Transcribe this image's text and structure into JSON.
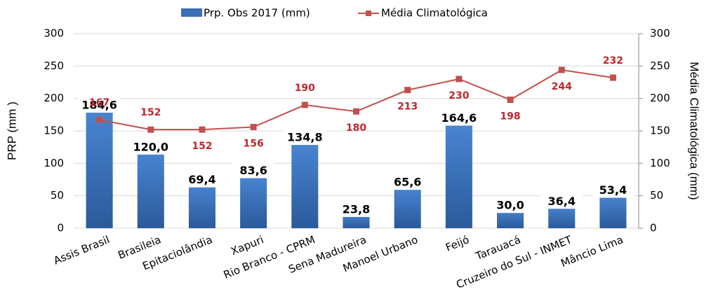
{
  "chart_data": {
    "type": "bar-line",
    "categories": [
      "Assis Brasil",
      "Brasileia",
      "Epitaciolândia",
      "Xapuri",
      "Rio Branco - CPRM",
      "Sena Madureira",
      "Manoel Urbano",
      "Feijó",
      "Tarauacá",
      "Cruzeiro do Sul - INMET",
      "Mâncio Lima"
    ],
    "series": [
      {
        "name": "Prp. Obs 2017 (mm)",
        "type": "bar",
        "color": "#3a6fb7",
        "values": [
          184.6,
          120.0,
          69.4,
          83.6,
          134.8,
          23.8,
          65.6,
          164.6,
          30.0,
          36.4,
          53.4
        ],
        "value_labels": [
          "184,6",
          "120,0",
          "69,4",
          "83,6",
          "134,8",
          "23,8",
          "65,6",
          "164,6",
          "30,0",
          "36,4",
          "53,4"
        ]
      },
      {
        "name": "Média Climatológica",
        "type": "line",
        "axis": "y2",
        "color": "#c0504d",
        "values": [
          167,
          152,
          152,
          156,
          190,
          180,
          213,
          230,
          198,
          244,
          232
        ]
      }
    ],
    "ylabel": "PRP (mm )",
    "y2label": "Média Climatológica (mm)",
    "ylim": [
      0,
      300
    ],
    "yticks": [
      0,
      50,
      100,
      150,
      200,
      250,
      300
    ],
    "y2lim": [
      0,
      300
    ],
    "y2ticks": [
      0,
      50,
      100,
      150,
      200,
      250,
      300
    ],
    "grid": true
  }
}
